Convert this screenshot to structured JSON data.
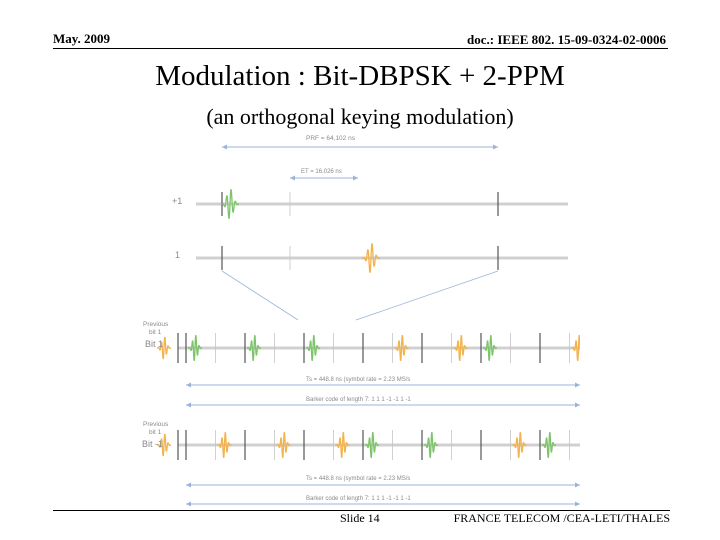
{
  "header": {
    "date": "May. 2009",
    "doc_id": "doc.: IEEE 802. 15-09-0324-02-0006"
  },
  "slide": {
    "title": "Modulation : Bit-DBPSK + 2-PPM",
    "subtitle": "(an orthogonal keying modulation)"
  },
  "diagram": {
    "prf_label": "PRF = 64,102 ns",
    "et_label": "ET = 16.026 ns",
    "row_plus1_label": "+1",
    "row_minus1_label": "1",
    "prev_bit_label": "Previous bit 1",
    "bit1_label": "Bit 1",
    "bitm1_label": "Bit -1",
    "ts_label_1": "Ts = 448.8 ns (symbol rate = 2.23 MS/s",
    "barker_label_1": "Barker code of length 7: 1 1 1 -1 -1 1 -1",
    "ts_label_2": "Ts = 448.8 ns (symbol rate = 2.23 MS/s",
    "barker_label_2": "Barker code of length 7: 1 1 1 -1 -1 1 -1",
    "bit1_pulse_colors": [
      "green",
      "green",
      "green",
      "orange",
      "orange",
      "green",
      "orange"
    ],
    "bitm1_pulse_colors": [
      "orange",
      "orange",
      "orange",
      "green",
      "green",
      "orange",
      "green"
    ],
    "colors": {
      "green": "#7dc36a",
      "orange": "#f2b24c",
      "line": "#d0d0d0",
      "tick": "#555555",
      "arrow": "#9bb3d8"
    }
  },
  "footer": {
    "slide_number": "Slide 14",
    "organization": "FRANCE TELECOM /CEA-LETI/THALES"
  }
}
